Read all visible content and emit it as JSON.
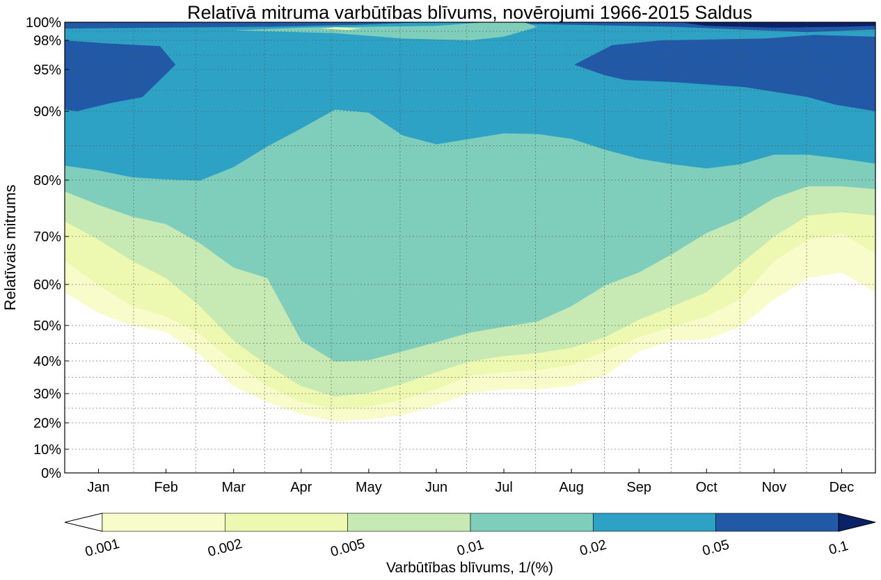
{
  "chart_data": {
    "type": "contourf",
    "title": "Relatīvā mitruma varbūtības blīvums, novērojumi 1966-2015 Saldus",
    "ylabel": "Relatīvais mitrums",
    "xlabel": "",
    "xlim": [
      0,
      12
    ],
    "ylim": [
      0,
      100
    ],
    "x_tick_labels": [
      "Jan",
      "Feb",
      "Mar",
      "Apr",
      "May",
      "Jun",
      "Jul",
      "Aug",
      "Sep",
      "Oct",
      "Nov",
      "Dec"
    ],
    "y_ticks": [
      0,
      10,
      20,
      30,
      40,
      50,
      60,
      70,
      80,
      90,
      95,
      98,
      100
    ],
    "y_tick_labels": [
      "0%",
      "10%",
      "20%",
      "30%",
      "40%",
      "50%",
      "60%",
      "70%",
      "80%",
      "90%",
      "95%",
      "98%",
      "100%"
    ],
    "grid": true,
    "colorbar": {
      "label": "Varbūtības blīvums, 1/(%)",
      "levels": [
        "0.001",
        "0.002",
        "0.005",
        "0.01",
        "0.02",
        "0.05",
        "0.1"
      ],
      "colors": [
        "#f8fcca",
        "#edf8b1",
        "#c7e9b4",
        "#7fcdbb",
        "#2ea2c4",
        "#2259a6",
        "#0c2268"
      ],
      "under_color": "#ffffff",
      "over_color": "#0c2268",
      "placement": "bottom"
    },
    "boundary_months": [
      0,
      0.5,
      1,
      1.5,
      2,
      2.5,
      3,
      3.5,
      4,
      4.5,
      5,
      5.5,
      6,
      6.5,
      7,
      7.5,
      8,
      8.5,
      9,
      9.5,
      10,
      10.5,
      11,
      11.5,
      12
    ],
    "level_boundaries": [
      {
        "level": "0.001",
        "lower_edge": [
          58.1,
          53,
          50,
          48.2,
          41.8,
          32.3,
          27.1,
          22.9,
          20.5,
          21.2,
          22.6,
          26,
          30.2,
          31.3,
          31.3,
          32.3,
          35.5,
          42.7,
          45.7,
          46.1,
          49.6,
          56.4,
          61.3,
          62.5,
          58.1
        ]
      },
      {
        "level": "0.002",
        "lower_edge": [
          64.9,
          59.8,
          54.7,
          52.2,
          47.6,
          39.8,
          32.3,
          27.1,
          24.8,
          25.5,
          27.9,
          31.3,
          35.5,
          36.6,
          37.2,
          38.7,
          42.7,
          46.7,
          49.6,
          52.2,
          56.4,
          64.9,
          69.3,
          70.6,
          66.4
        ]
      },
      {
        "level": "0.005",
        "lower_edge": [
          72.7,
          69.3,
          64.9,
          61.3,
          54.7,
          45.7,
          38.7,
          32.3,
          29,
          30.2,
          33,
          36.6,
          39.8,
          41.4,
          42.2,
          43.7,
          46.7,
          51.4,
          54.7,
          58.1,
          64.2,
          70,
          73.7,
          74.3,
          73.7
        ]
      },
      {
        "level": "0.01",
        "lower_edge": [
          78,
          75.6,
          73.5,
          72.2,
          68.6,
          63.5,
          61.3,
          45.7,
          39.8,
          40.2,
          42.7,
          45.3,
          48,
          49.6,
          51,
          54.7,
          59.8,
          62.5,
          66.4,
          70.6,
          73.1,
          76.8,
          78.9,
          78.9,
          78.4
        ]
      },
      {
        "level": "0.02",
        "lower_edge": [
          82.1,
          81.4,
          80.4,
          80.1,
          79.9,
          81.9,
          84.9,
          87.5,
          90.2,
          89.8,
          86.5,
          85.2,
          86,
          86.8,
          86.7,
          86,
          84.4,
          83.1,
          82.3,
          81.7,
          82.3,
          83.7,
          83.7,
          83.1,
          82.4
        ]
      }
    ],
    "regions": [
      {
        "level": "0.05",
        "points": [
          [
            0,
            98
          ],
          [
            0.59,
            97.7
          ],
          [
            1.41,
            97.4
          ],
          [
            1.64,
            95.5
          ],
          [
            1.41,
            93.75
          ],
          [
            1.15,
            91.7
          ],
          [
            0.69,
            91
          ],
          [
            0.38,
            90.4
          ],
          [
            0.18,
            90
          ],
          [
            0,
            90.2
          ]
        ]
      },
      {
        "level": "0.05",
        "points": [
          [
            7.54,
            95.5
          ],
          [
            8.1,
            97.5
          ],
          [
            8.83,
            98
          ],
          [
            10.37,
            98.2
          ],
          [
            11.09,
            98.6
          ],
          [
            12,
            98.4
          ],
          [
            12,
            90
          ],
          [
            11.4,
            90.8
          ],
          [
            11,
            91.7
          ],
          [
            10.06,
            92.9
          ],
          [
            9,
            93.5
          ],
          [
            8.3,
            93.75
          ],
          [
            8,
            94.3
          ]
        ]
      },
      {
        "level": "0.05",
        "points": [
          [
            0,
            100
          ],
          [
            0,
            99.3
          ],
          [
            1.5,
            99.4
          ],
          [
            3,
            99.5
          ],
          [
            4.3,
            99.7
          ],
          [
            5.3,
            100
          ]
        ]
      },
      {
        "level": "0.05",
        "points": [
          [
            5.4,
            100
          ],
          [
            7,
            99.8
          ],
          [
            9,
            99.5
          ],
          [
            10,
            99.2
          ],
          [
            11,
            98.9
          ],
          [
            12,
            99.2
          ],
          [
            12,
            100
          ]
        ]
      },
      {
        "level": "0.1",
        "points": [
          [
            9.1,
            100
          ],
          [
            9.5,
            99.6
          ],
          [
            10.5,
            99.4
          ],
          [
            11.5,
            99.5
          ],
          [
            12,
            99.6
          ],
          [
            12,
            100
          ]
        ]
      },
      {
        "level": "0.01",
        "points": [
          [
            2.5,
            99.1
          ],
          [
            4,
            98.8
          ],
          [
            5,
            98.2
          ],
          [
            6,
            98
          ],
          [
            6.5,
            98.4
          ],
          [
            7,
            99.5
          ],
          [
            6.8,
            100
          ],
          [
            6.2,
            100
          ],
          [
            5.5,
            99.6
          ],
          [
            4.5,
            99.5
          ],
          [
            3.5,
            99.4
          ]
        ]
      },
      {
        "level": "0.002",
        "points": [
          [
            3.8,
            99.3
          ],
          [
            4.2,
            99.15
          ],
          [
            4.4,
            99.3
          ],
          [
            4,
            99.45
          ]
        ]
      }
    ]
  }
}
